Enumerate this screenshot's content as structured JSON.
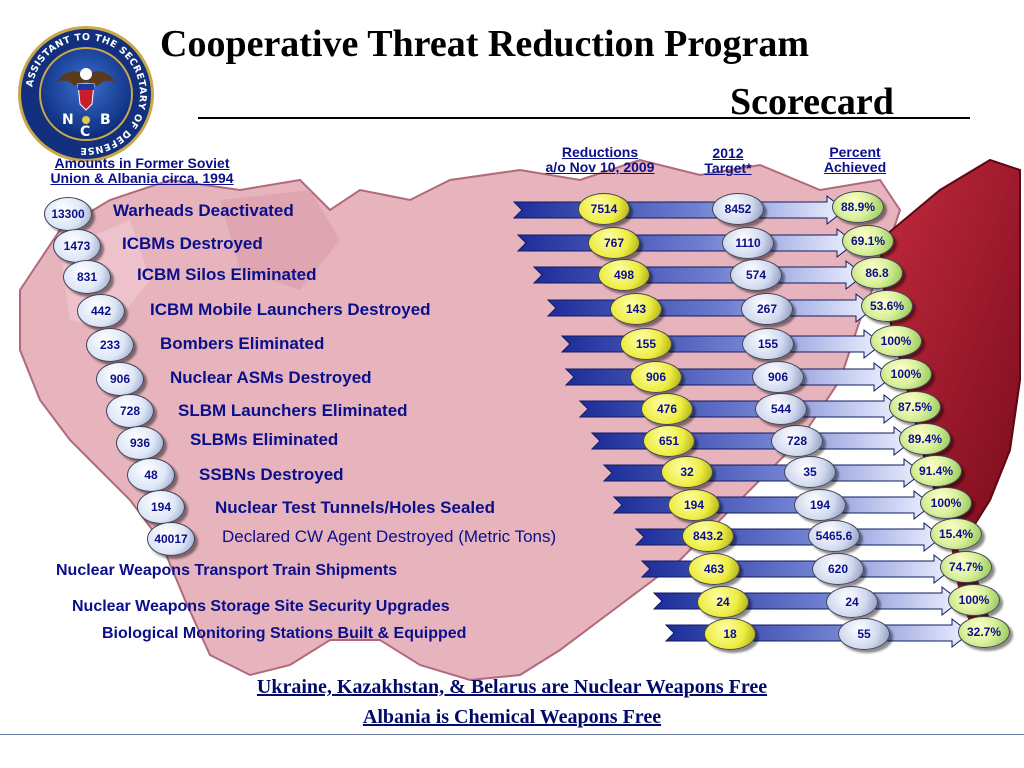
{
  "title": {
    "line1": "Cooperative Threat Reduction Program",
    "line2": "Scorecard"
  },
  "seal": {
    "ring_text": "ASSISTANT TO THE SECRETARY OF DEFENSE",
    "letters": [
      "N",
      "C",
      "B"
    ]
  },
  "headers": {
    "amounts_line1": "Amounts in Former Soviet",
    "amounts_line2": "Union & Albania circa. 1994",
    "reductions_line1": "Reductions",
    "reductions_line2": "a/o Nov 10, 2009",
    "target_line1": "2012",
    "target_line2": "Target*",
    "percent_line1": "Percent",
    "percent_line2": "Achieved"
  },
  "rows": [
    {
      "label": "Warheads Deactivated",
      "baseline": "13300",
      "reductions": "7514",
      "target": "8452",
      "percent": "88.9%"
    },
    {
      "label": "ICBMs Destroyed",
      "baseline": "1473",
      "reductions": "767",
      "target": "1110",
      "percent": "69.1%"
    },
    {
      "label": "ICBM Silos Eliminated",
      "baseline": "831",
      "reductions": "498",
      "target": "574",
      "percent": "86.8"
    },
    {
      "label": "ICBM Mobile Launchers Destroyed",
      "baseline": "442",
      "reductions": "143",
      "target": "267",
      "percent": "53.6%"
    },
    {
      "label": "Bombers Eliminated",
      "baseline": "233",
      "reductions": "155",
      "target": "155",
      "percent": "100%"
    },
    {
      "label": "Nuclear ASMs Destroyed",
      "baseline": "906",
      "reductions": "906",
      "target": "906",
      "percent": "100%"
    },
    {
      "label": "SLBM Launchers Eliminated",
      "baseline": "728",
      "reductions": "476",
      "target": "544",
      "percent": "87.5%"
    },
    {
      "label": "SLBMs Eliminated",
      "baseline": "936",
      "reductions": "651",
      "target": "728",
      "percent": "89.4%"
    },
    {
      "label": "SSBNs Destroyed",
      "baseline": "48",
      "reductions": "32",
      "target": "35",
      "percent": "91.4%"
    },
    {
      "label": "Nuclear Test Tunnels/Holes Sealed",
      "baseline": "194",
      "reductions": "194",
      "target": "194",
      "percent": "100%"
    },
    {
      "label": "Declared CW Agent Destroyed (Metric Tons)",
      "baseline": "40017",
      "reductions": "843.2",
      "target": "5465.6",
      "percent": "15.4%"
    },
    {
      "label": "Nuclear Weapons Transport Train Shipments",
      "reductions": "463",
      "target": "620",
      "percent": "74.7%"
    },
    {
      "label": "Nuclear Weapons Storage Site Security Upgrades",
      "reductions": "24",
      "target": "24",
      "percent": "100%"
    },
    {
      "label": "Biological Monitoring Stations Built & Equipped",
      "reductions": "18",
      "target": "55",
      "percent": "32.7%"
    }
  ],
  "footer": {
    "line1": "Ukraine, Kazakhstan, & Belarus are Nuclear Weapons Free",
    "line2": "Albania is Chemical Weapons Free"
  },
  "colors": {
    "label_blue": "#0a0f8a",
    "map_pink": "#e7b4be",
    "map_red": "#9a1428",
    "arrow_blue": "#1c2d9a"
  }
}
